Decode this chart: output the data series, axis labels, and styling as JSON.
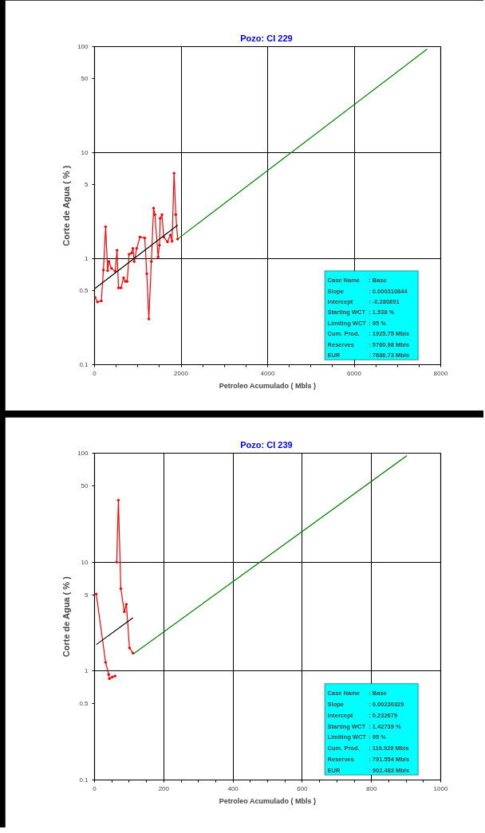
{
  "chart_data": [
    {
      "type": "line",
      "title": "Pozo:  CI 229",
      "xlabel": "Petroleo Acumulado ( Mbls )",
      "ylabel": "Corte de Agua ( % )",
      "log": true,
      "grid": true,
      "xlim": [
        0,
        8000
      ],
      "xticks": [
        0,
        {
          "value": 500,
          "label": null
        },
        {
          "value": 1000,
          "label": null
        },
        {
          "value": 1500,
          "label": null
        },
        2000,
        {
          "value": 2500,
          "label": null
        },
        {
          "value": 3000,
          "label": null
        },
        {
          "value": 3500,
          "label": null
        },
        4000,
        {
          "value": 4500,
          "label": null
        },
        {
          "value": 5000,
          "label": null
        },
        {
          "value": 5500,
          "label": null
        },
        6000,
        {
          "value": 6500,
          "label": null
        },
        {
          "value": 7000,
          "label": null
        },
        {
          "value": 7500,
          "label": null
        },
        8000
      ],
      "ylim": [
        0.1,
        100
      ],
      "yticks": [
        0.1,
        0.5,
        1,
        5,
        10,
        50,
        100
      ],
      "series": [
        {
          "color": "#ff0000",
          "marker": "circle",
          "x": [
            12,
            70,
            158,
            205,
            257,
            303,
            333,
            391,
            479,
            520,
            555,
            613,
            671,
            712,
            753,
            800,
            858,
            888,
            916,
            975,
            1050,
            1161,
            1208,
            1255,
            1313,
            1365,
            1395,
            1470,
            1500,
            1517,
            1558,
            1598,
            1686,
            1751,
            1791,
            1838,
            1878,
            1920
          ],
          "values": [
            0.43,
            0.39,
            0.4,
            0.78,
            2.0,
            0.77,
            0.94,
            0.81,
            0.76,
            1.2,
            0.53,
            0.53,
            0.66,
            0.61,
            0.61,
            1.1,
            1.13,
            1.25,
            0.94,
            1.25,
            1.6,
            1.57,
            0.72,
            0.27,
            0.94,
            3.0,
            2.6,
            1.04,
            1.34,
            2.4,
            2.6,
            1.6,
            1.44,
            1.67,
            1.46,
            6.4,
            2.6,
            1.53
          ]
        },
        {
          "color": "#000000",
          "x": [
            0,
            1925
          ],
          "values": [
            0.52,
            2.08
          ]
        },
        {
          "color": "#008000",
          "x": [
            1925.75,
            7686.73
          ],
          "values": [
            1.538,
            95
          ]
        }
      ],
      "annotations": [
        "Case Name : Base",
        "Slope : 0.000310844",
        "Intercept : -0.280891",
        "Starting WCT : 1.538 %",
        "Limiting WCT : 95 %",
        "Cum. Prod. : 1925.75 Mbls",
        "Reserves : 5760.98 Mbls",
        "EUR : 7686.73 Mbls"
      ]
    },
    {
      "type": "line",
      "title": "Pozo:  CI 239",
      "xlabel": "Petroleo Acumulado ( Mbls )",
      "ylabel": "Corte de Agua ( % )",
      "log": true,
      "grid": true,
      "xlim": [
        0,
        1000
      ],
      "xticks": [
        0,
        {
          "value": 50,
          "label": null
        },
        {
          "value": 100,
          "label": null
        },
        {
          "value": 150,
          "label": null
        },
        200,
        {
          "value": 250,
          "label": null
        },
        {
          "value": 300,
          "label": null
        },
        {
          "value": 350,
          "label": null
        },
        400,
        {
          "value": 450,
          "label": null
        },
        {
          "value": 500,
          "label": null
        },
        {
          "value": 550,
          "label": null
        },
        600,
        {
          "value": 650,
          "label": null
        },
        {
          "value": 700,
          "label": null
        },
        {
          "value": 750,
          "label": null
        },
        800,
        {
          "value": 850,
          "label": null
        },
        {
          "value": 900,
          "label": null
        },
        {
          "value": 950,
          "label": null
        },
        1000
      ],
      "ylim": [
        0.1,
        100
      ],
      "yticks": [
        0.1,
        0.5,
        1,
        5,
        10,
        50,
        100
      ],
      "series": [
        {
          "color": "#ff0000",
          "marker": "circle",
          "x": [
            5,
            32,
            41,
            43,
            51,
            59,
            61,
            64,
            69,
            76,
            86,
            92,
            101,
            111
          ],
          "values": [
            5.1,
            1.2,
            0.93,
            0.85,
            0.88,
            0.9,
            null,
            10,
            37,
            5.7,
            3.5,
            4.1,
            1.63,
            1.46
          ]
        },
        {
          "color": "#000000",
          "x": [
            5,
            111
          ],
          "values": [
            1.75,
            3.08
          ]
        },
        {
          "color": "#008000",
          "x": [
            110.929,
            902.483
          ],
          "values": [
            1.42739,
            95
          ]
        }
      ],
      "annotations": [
        "Case Name : Base",
        "Slope : 0.00230329",
        "Intercept : 0.232679",
        "Starting WCT : 1.42739 %",
        "Limiting WCT : 95 %",
        "Cum. Prod. : 110.929 Mbls",
        "Reserves : 791.554 Mbls",
        "EUR : 902.483 Mbls"
      ]
    }
  ]
}
